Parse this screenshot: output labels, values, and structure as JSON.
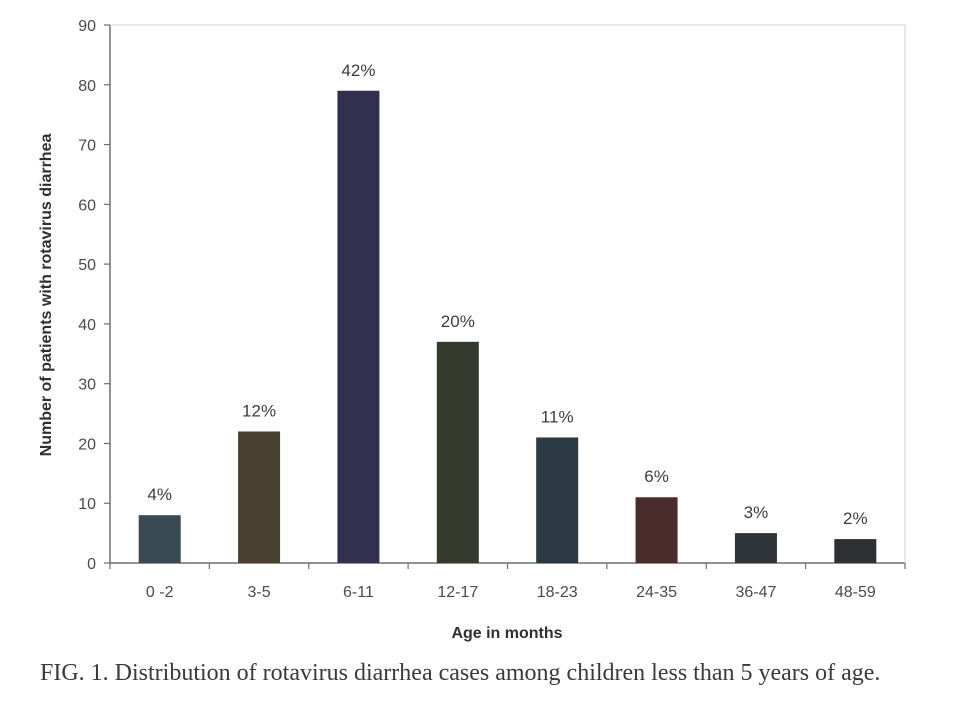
{
  "caption": "FIG. 1. Distribution of rotavirus diarrhea cases among children less than 5 years of age.",
  "chart_data": {
    "type": "bar",
    "xlabel": "Age in months",
    "ylabel": "Number of patients with rotavirus diarrhea",
    "ylim": [
      0,
      90
    ],
    "yticks": [
      "0",
      "10",
      "20",
      "30",
      "40",
      "50",
      "60",
      "70",
      "80",
      "90"
    ],
    "grid": false,
    "categories": [
      "0 -2",
      "3-5",
      "6-11",
      "12-17",
      "18-23",
      "24-35",
      "36-47",
      "48-59"
    ],
    "values": [
      8,
      22,
      79,
      37,
      21,
      11,
      5,
      4
    ],
    "data_labels": [
      "4%",
      "12%",
      "42%",
      "20%",
      "11%",
      "6%",
      "3%",
      "2%"
    ],
    "bar_colors": [
      "#3a4a52",
      "#4a4030",
      "#33304f",
      "#343a2e",
      "#2b3a42",
      "#4a2c2c",
      "#2f3438",
      "#2d3033"
    ]
  }
}
